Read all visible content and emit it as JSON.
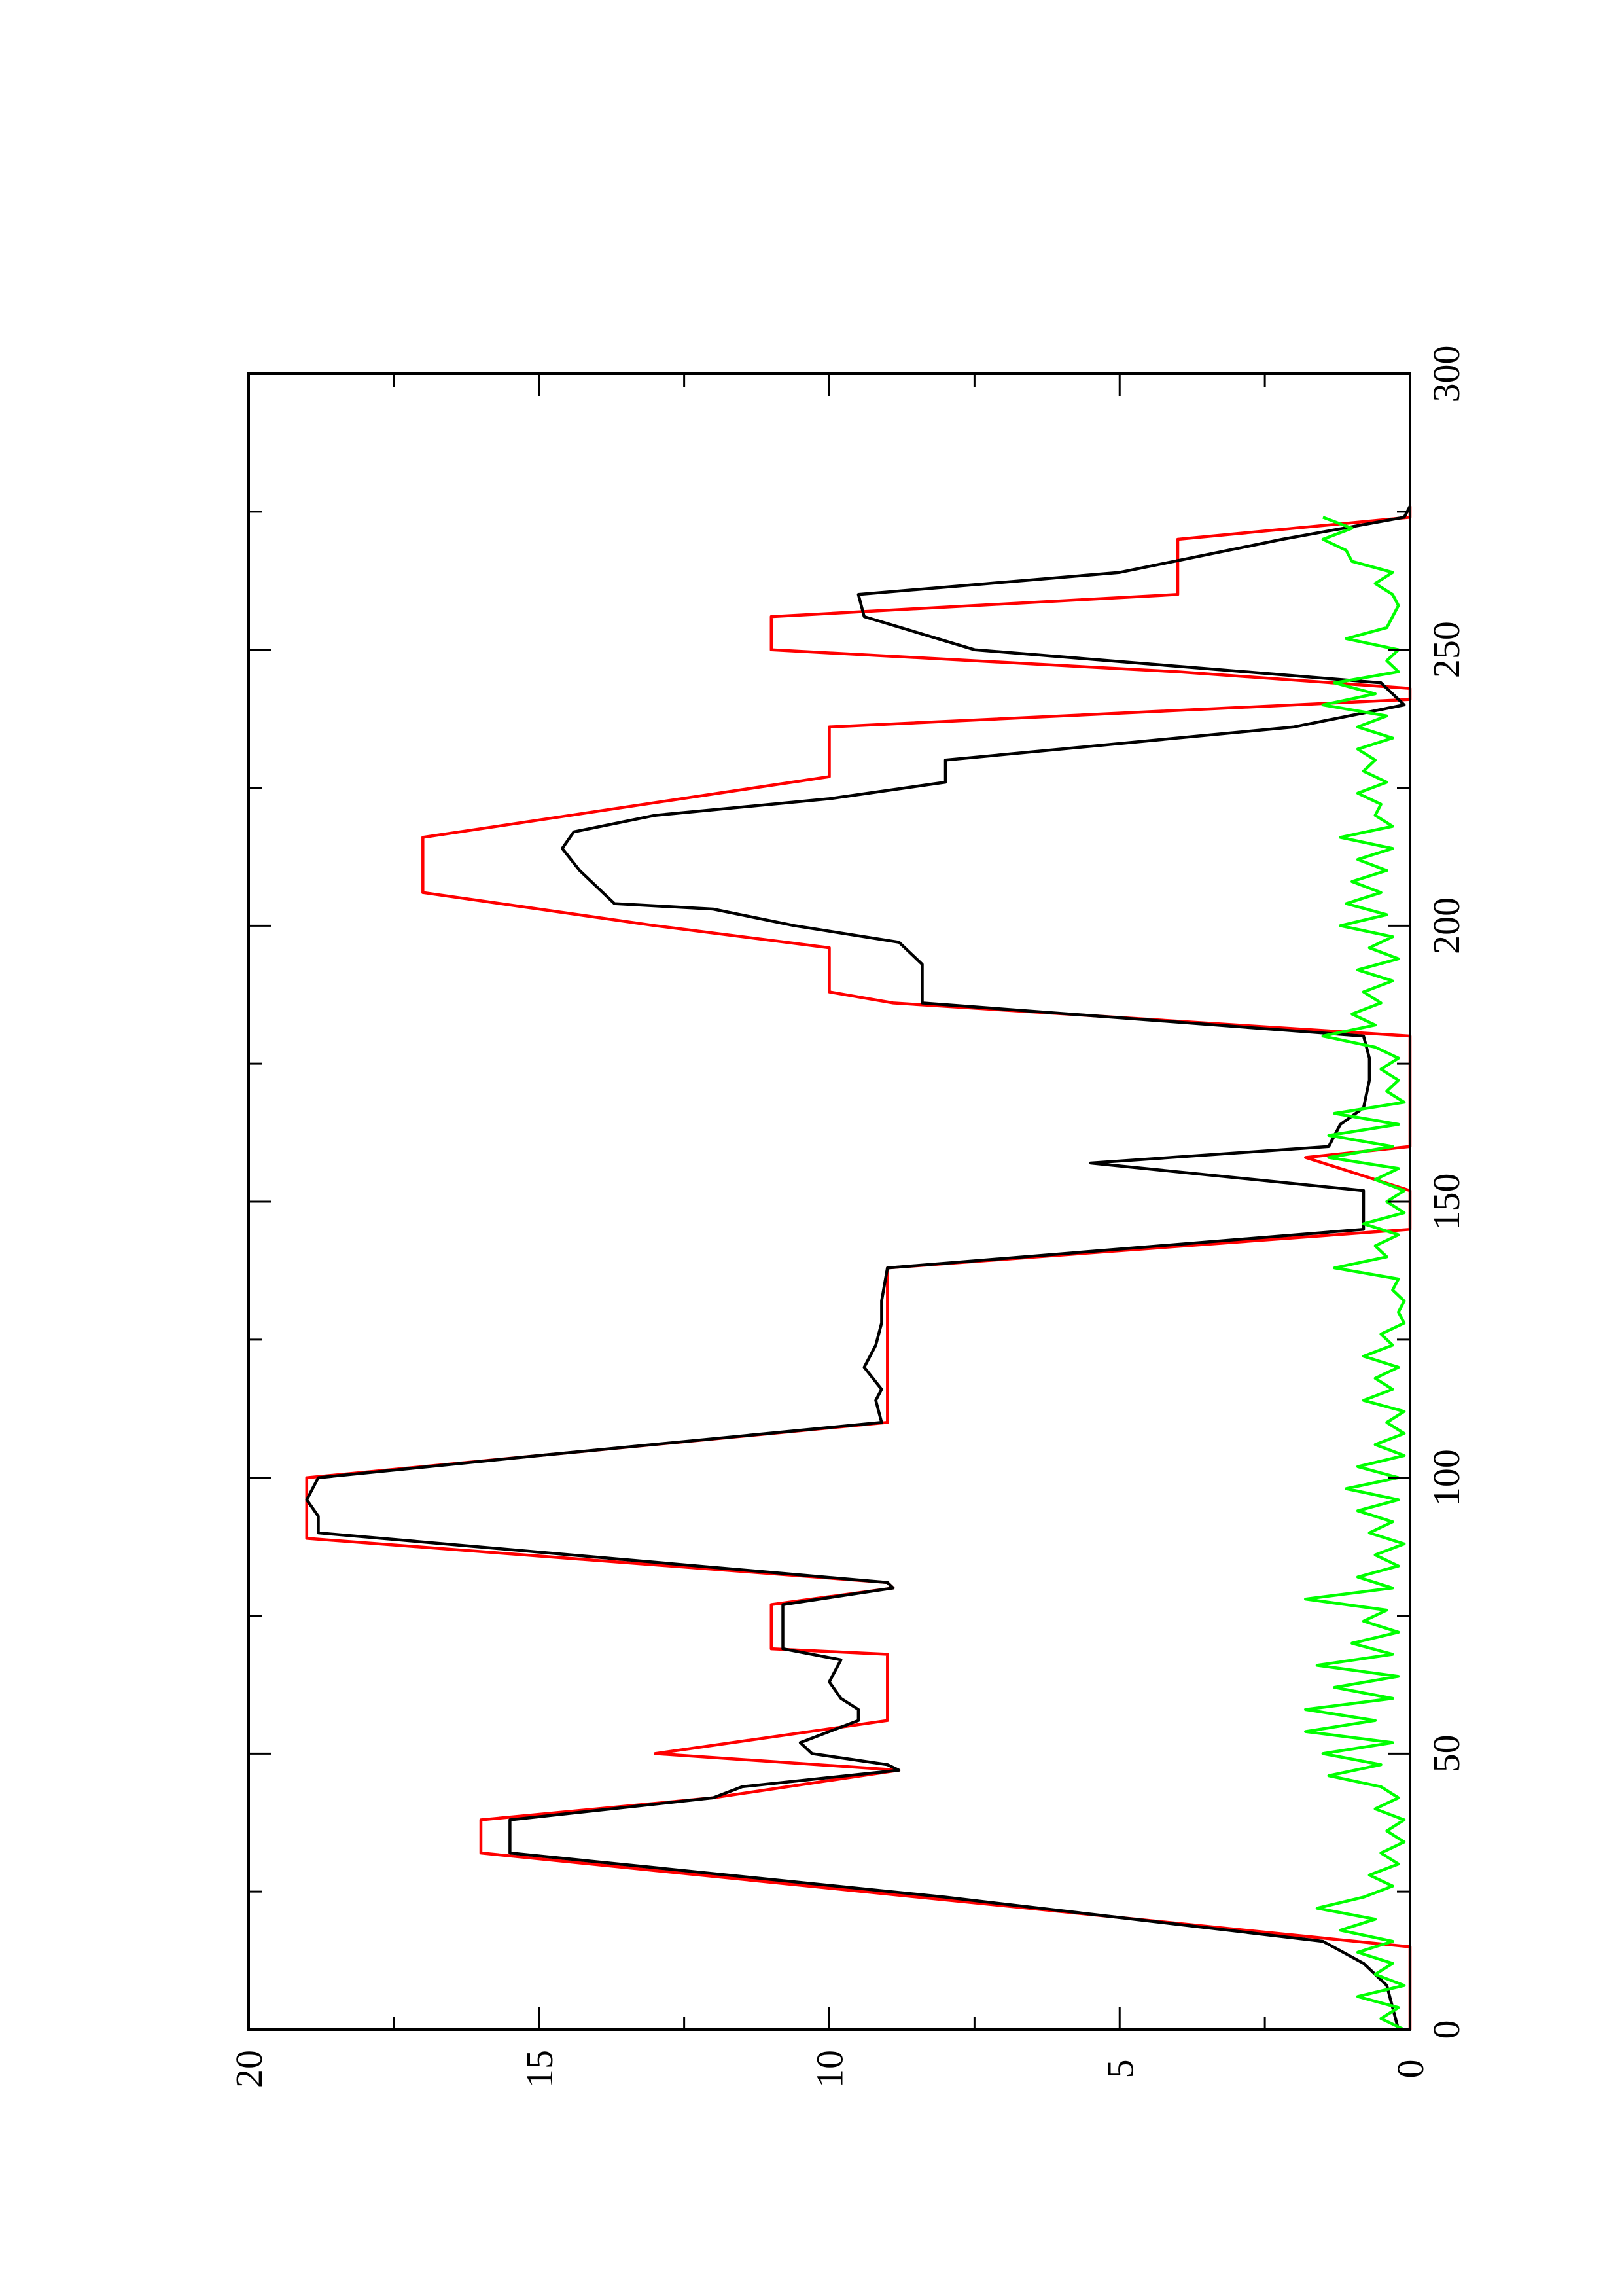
{
  "chart_data": {
    "type": "line",
    "orientation": "rotated-90-ccw",
    "title": "",
    "xlabel": "",
    "ylabel": "",
    "xlim": [
      0,
      300
    ],
    "ylim": [
      0,
      20
    ],
    "x_ticks": [
      "0",
      "50",
      "100",
      "150",
      "200",
      "250",
      "300"
    ],
    "y_ticks": [
      "0",
      "5",
      "10",
      "15",
      "20"
    ],
    "grid": false,
    "legend": "none",
    "series": [
      {
        "color": "#ff0000",
        "points": [
          [
            0,
            0
          ],
          [
            15,
            0
          ],
          [
            32,
            16
          ],
          [
            38,
            16
          ],
          [
            42,
            12
          ],
          [
            47,
            8.8
          ],
          [
            50,
            13
          ],
          [
            56,
            9
          ],
          [
            68,
            9
          ],
          [
            69,
            11
          ],
          [
            77,
            11
          ],
          [
            80,
            8.9
          ],
          [
            81,
            9
          ],
          [
            89,
            19
          ],
          [
            100,
            19
          ],
          [
            104,
            15
          ],
          [
            110,
            9
          ],
          [
            138,
            9
          ],
          [
            145,
            0
          ],
          [
            152,
            0
          ],
          [
            158,
            1.8
          ],
          [
            160,
            0
          ],
          [
            180,
            0
          ],
          [
            186,
            8.9
          ],
          [
            188,
            10
          ],
          [
            196,
            10
          ],
          [
            200,
            13
          ],
          [
            206,
            17
          ],
          [
            216,
            17
          ],
          [
            227,
            10
          ],
          [
            236,
            10
          ],
          [
            241,
            0
          ],
          [
            243,
            0
          ],
          [
            246,
            4
          ],
          [
            250,
            11
          ],
          [
            256,
            11
          ],
          [
            260,
            4
          ],
          [
            270,
            4
          ],
          [
            274,
            0
          ],
          [
            276,
            0
          ]
        ]
      },
      {
        "color": "#000000",
        "points": [
          [
            0,
            0.2
          ],
          [
            8,
            0.4
          ],
          [
            12,
            0.8
          ],
          [
            16,
            1.5
          ],
          [
            24,
            8
          ],
          [
            32,
            15.5
          ],
          [
            38,
            15.5
          ],
          [
            42,
            12
          ],
          [
            44,
            11.5
          ],
          [
            47,
            8.8
          ],
          [
            48,
            9
          ],
          [
            50,
            10.3
          ],
          [
            52,
            10.5
          ],
          [
            56,
            9.5
          ],
          [
            58,
            9.5
          ],
          [
            60,
            9.8
          ],
          [
            63,
            10
          ],
          [
            67,
            9.8
          ],
          [
            69,
            10.8
          ],
          [
            77,
            10.8
          ],
          [
            80,
            8.9
          ],
          [
            81,
            9
          ],
          [
            90,
            18.8
          ],
          [
            93,
            18.8
          ],
          [
            96,
            19
          ],
          [
            100,
            18.8
          ],
          [
            104,
            15
          ],
          [
            110,
            9.1
          ],
          [
            114,
            9.2
          ],
          [
            116,
            9.1
          ],
          [
            120,
            9.4
          ],
          [
            124,
            9.2
          ],
          [
            128,
            9.1
          ],
          [
            132,
            9.1
          ],
          [
            138,
            9
          ],
          [
            145,
            0.8
          ],
          [
            149,
            0.8
          ],
          [
            152,
            0.8
          ],
          [
            157,
            5.5
          ],
          [
            160,
            1.4
          ],
          [
            164,
            1.2
          ],
          [
            167,
            0.8
          ],
          [
            172,
            0.7
          ],
          [
            176,
            0.7
          ],
          [
            180,
            0.8
          ],
          [
            186,
            8.4
          ],
          [
            193,
            8.4
          ],
          [
            197,
            8.8
          ],
          [
            200,
            10.6
          ],
          [
            203,
            12
          ],
          [
            204,
            13.7
          ],
          [
            206,
            13.9
          ],
          [
            210,
            14.3
          ],
          [
            214,
            14.6
          ],
          [
            217,
            14.4
          ],
          [
            220,
            13
          ],
          [
            223,
            10
          ],
          [
            226,
            8
          ],
          [
            230,
            8
          ],
          [
            236,
            2
          ],
          [
            240,
            0.1
          ],
          [
            244,
            0.5
          ],
          [
            250,
            7.5
          ],
          [
            256,
            9.4
          ],
          [
            260,
            9.5
          ],
          [
            264,
            5
          ],
          [
            270,
            2.2
          ],
          [
            274,
            0.1
          ],
          [
            276,
            0
          ]
        ]
      },
      {
        "color": "#00ff00",
        "points": [
          [
            0,
            0.1
          ],
          [
            2,
            0.5
          ],
          [
            4,
            0.2
          ],
          [
            6,
            0.9
          ],
          [
            8,
            0.1
          ],
          [
            10,
            0.6
          ],
          [
            12,
            0.3
          ],
          [
            14,
            0.9
          ],
          [
            16,
            0.3
          ],
          [
            18,
            1.2
          ],
          [
            20,
            0.6
          ],
          [
            22,
            1.6
          ],
          [
            24,
            0.8
          ],
          [
            26,
            0.3
          ],
          [
            28,
            0.7
          ],
          [
            30,
            0.2
          ],
          [
            32,
            0.5
          ],
          [
            34,
            0.1
          ],
          [
            36,
            0.4
          ],
          [
            38,
            0.1
          ],
          [
            40,
            0.6
          ],
          [
            42,
            0.2
          ],
          [
            44,
            0.5
          ],
          [
            46,
            1.4
          ],
          [
            48,
            0.5
          ],
          [
            50,
            1.5
          ],
          [
            52,
            0.3
          ],
          [
            54,
            1.8
          ],
          [
            56,
            0.6
          ],
          [
            58,
            1.8
          ],
          [
            60,
            0.3
          ],
          [
            62,
            1.3
          ],
          [
            64,
            0.2
          ],
          [
            66,
            1.6
          ],
          [
            68,
            0.3
          ],
          [
            70,
            1.0
          ],
          [
            72,
            0.2
          ],
          [
            74,
            0.8
          ],
          [
            76,
            0.4
          ],
          [
            78,
            1.8
          ],
          [
            80,
            0.3
          ],
          [
            82,
            0.9
          ],
          [
            84,
            0.2
          ],
          [
            86,
            0.6
          ],
          [
            88,
            0.1
          ],
          [
            90,
            0.7
          ],
          [
            92,
            0.3
          ],
          [
            94,
            0.9
          ],
          [
            96,
            0.2
          ],
          [
            98,
            1.1
          ],
          [
            100,
            0.2
          ],
          [
            102,
            0.9
          ],
          [
            104,
            0.1
          ],
          [
            106,
            0.6
          ],
          [
            108,
            0.1
          ],
          [
            110,
            0.4
          ],
          [
            112,
            0.1
          ],
          [
            114,
            0.8
          ],
          [
            116,
            0.3
          ],
          [
            118,
            0.6
          ],
          [
            120,
            0.2
          ],
          [
            122,
            0.8
          ],
          [
            124,
            0.3
          ],
          [
            126,
            0.5
          ],
          [
            128,
            0.1
          ],
          [
            130,
            0.2
          ],
          [
            132,
            0.1
          ],
          [
            134,
            0.3
          ],
          [
            136,
            0.2
          ],
          [
            138,
            1.3
          ],
          [
            140,
            0.4
          ],
          [
            142,
            0.6
          ],
          [
            144,
            0.2
          ],
          [
            146,
            0.8
          ],
          [
            148,
            0.1
          ],
          [
            150,
            0.4
          ],
          [
            152,
            0.1
          ],
          [
            154,
            0.6
          ],
          [
            156,
            0.2
          ],
          [
            158,
            1.4
          ],
          [
            160,
            0.3
          ],
          [
            162,
            1.4
          ],
          [
            164,
            0.2
          ],
          [
            166,
            1.3
          ],
          [
            168,
            0.1
          ],
          [
            170,
            0.4
          ],
          [
            172,
            0.2
          ],
          [
            174,
            0.5
          ],
          [
            176,
            0.2
          ],
          [
            178,
            0.6
          ],
          [
            180,
            1.5
          ],
          [
            182,
            0.6
          ],
          [
            184,
            1.0
          ],
          [
            186,
            0.5
          ],
          [
            188,
            0.8
          ],
          [
            190,
            0.3
          ],
          [
            192,
            0.9
          ],
          [
            194,
            0.2
          ],
          [
            196,
            0.7
          ],
          [
            198,
            0.3
          ],
          [
            200,
            1.2
          ],
          [
            202,
            0.4
          ],
          [
            204,
            1.1
          ],
          [
            206,
            0.5
          ],
          [
            208,
            1.0
          ],
          [
            210,
            0.4
          ],
          [
            212,
            0.9
          ],
          [
            214,
            0.3
          ],
          [
            216,
            1.2
          ],
          [
            218,
            0.3
          ],
          [
            220,
            0.6
          ],
          [
            222,
            0.5
          ],
          [
            224,
            0.9
          ],
          [
            226,
            0.4
          ],
          [
            228,
            0.8
          ],
          [
            230,
            0.6
          ],
          [
            232,
            0.9
          ],
          [
            234,
            0.3
          ],
          [
            236,
            0.9
          ],
          [
            238,
            0.4
          ],
          [
            240,
            1.5
          ],
          [
            242,
            0.6
          ],
          [
            244,
            1.3
          ],
          [
            246,
            0.2
          ],
          [
            248,
            0.4
          ],
          [
            250,
            0.2
          ],
          [
            252,
            1.1
          ],
          [
            254,
            0.4
          ],
          [
            256,
            0.3
          ],
          [
            258,
            0.2
          ],
          [
            260,
            0.3
          ],
          [
            262,
            0.6
          ],
          [
            264,
            0.3
          ],
          [
            266,
            1.0
          ],
          [
            268,
            1.1
          ],
          [
            270,
            1.5
          ],
          [
            272,
            1.0
          ],
          [
            274,
            1.5
          ]
        ]
      }
    ]
  },
  "style": {
    "frame_color": "#000000",
    "background": "#ffffff"
  }
}
